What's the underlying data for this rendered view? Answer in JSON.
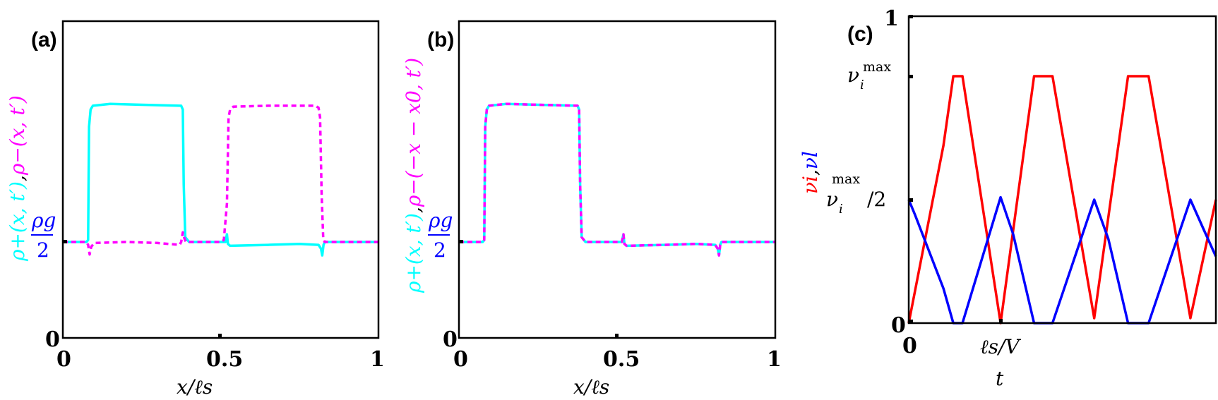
{
  "figure": {
    "panels": [
      {
        "id": "a",
        "label": "(a)"
      },
      {
        "id": "b",
        "label": "(b)"
      },
      {
        "id": "c",
        "label": "(c)"
      }
    ]
  },
  "colors": {
    "rho_plus": "#00ffff",
    "rho_minus": "#ff00ff",
    "nu_i": "#ff0000",
    "nu_l": "#0000ff",
    "rho_g_label": "#0000ff",
    "axes": "#000000"
  },
  "labels": {
    "a": {
      "panel": "(a)",
      "xlabel": "x/ℓs",
      "ylabel_plus": "ρ+(x, t′)",
      "ylabel_sep": ",",
      "ylabel_minus": "ρ−(x, t′)",
      "ytick_rho_num": "ρg",
      "ytick_rho_den": "2",
      "ytick_zero": "0",
      "xticks": [
        "0",
        "0.5",
        "1"
      ]
    },
    "b": {
      "panel": "(b)",
      "xlabel": "x/ℓs",
      "ylabel_plus": "ρ+(x, t′)",
      "ylabel_sep": ",",
      "ylabel_minus": "ρ−(−x − x0, t′)",
      "ytick_rho_num": "ρg",
      "ytick_rho_den": "2",
      "ytick_zero": "0",
      "xticks": [
        "0",
        "0.5",
        "1"
      ]
    },
    "c": {
      "panel": "(c)",
      "xlabel": "t",
      "ylabel_nu_i": "νi",
      "ylabel_sep": ",",
      "ylabel_nu_l": "νl",
      "yticks": [
        "0",
        "νi^max/2",
        "νi^max",
        "1"
      ],
      "ytick_max_base": "ν",
      "ytick_max_sub": "i",
      "ytick_max_sup": "max",
      "ytick_half_suffix": "/2",
      "ytick_top": "1",
      "ytick_zero": "0",
      "xtick_zero": "0",
      "xtick_ls_v": "ℓs/V"
    }
  },
  "chart_data": [
    {
      "panel": "(a)",
      "type": "line",
      "title": "",
      "xlabel": "x/ℓs",
      "ylabel": "ρ+(x,t′), ρ−(x,t′)",
      "xlim": [
        0,
        1
      ],
      "ylim_units_of_rho_g_over_2": [
        0,
        3.3
      ],
      "yticks": [
        {
          "value": 0,
          "label": "0"
        },
        {
          "value": 1,
          "label": "ρg/2"
        }
      ],
      "xticks": [
        0,
        0.5,
        1
      ],
      "grid": false,
      "series": [
        {
          "name": "ρ+(x,t′)",
          "style": "solid",
          "color": "#00ffff",
          "x": [
            0,
            0.075,
            0.08,
            0.083,
            0.088,
            0.095,
            0.15,
            0.25,
            0.375,
            0.38,
            0.383,
            0.388,
            0.4,
            0.5,
            0.515,
            0.52,
            0.523,
            0.53,
            0.65,
            0.75,
            0.81,
            0.818,
            0.822,
            0.826,
            0.83,
            1.0
          ],
          "y": [
            1.0,
            1.0,
            1.02,
            2.2,
            2.38,
            2.42,
            2.44,
            2.43,
            2.42,
            2.38,
            1.6,
            1.05,
            1.0,
            1.0,
            1.0,
            1.08,
            0.98,
            0.96,
            0.97,
            0.98,
            0.97,
            0.93,
            0.86,
            0.97,
            1.0,
            1.0
          ]
        },
        {
          "name": "ρ−(x,t′)",
          "style": "dashed",
          "color": "#ff00ff",
          "x": [
            0,
            0.075,
            0.08,
            0.085,
            0.09,
            0.1,
            0.2,
            0.3,
            0.37,
            0.375,
            0.38,
            0.385,
            0.39,
            0.4,
            0.5,
            0.51,
            0.52,
            0.525,
            0.53,
            0.54,
            0.65,
            0.8,
            0.81,
            0.815,
            0.82,
            0.825,
            0.83,
            1.0
          ],
          "y": [
            1.0,
            1.0,
            0.97,
            0.87,
            0.95,
            0.99,
            1.0,
            0.99,
            0.97,
            1.0,
            1.1,
            1.04,
            1.0,
            1.0,
            1.0,
            1.02,
            1.4,
            2.3,
            2.38,
            2.41,
            2.42,
            2.42,
            2.4,
            2.3,
            1.5,
            1.03,
            1.0,
            1.0
          ]
        }
      ]
    },
    {
      "panel": "(b)",
      "type": "line",
      "title": "",
      "xlabel": "x/ℓs",
      "ylabel": "ρ+(x,t′), ρ−(−x−x0,t′)",
      "xlim": [
        0,
        1
      ],
      "ylim_units_of_rho_g_over_2": [
        0,
        3.3
      ],
      "yticks": [
        {
          "value": 0,
          "label": "0"
        },
        {
          "value": 1,
          "label": "ρg/2"
        }
      ],
      "xticks": [
        0,
        0.5,
        1
      ],
      "grid": false,
      "series": [
        {
          "name": "ρ+(x,t′)",
          "style": "solid",
          "color": "#00ffff",
          "x": [
            0,
            0.075,
            0.08,
            0.083,
            0.088,
            0.095,
            0.15,
            0.25,
            0.375,
            0.38,
            0.383,
            0.388,
            0.4,
            0.5,
            0.515,
            0.52,
            0.523,
            0.53,
            0.65,
            0.75,
            0.81,
            0.818,
            0.822,
            0.826,
            0.83,
            1.0
          ],
          "y": [
            1.0,
            1.0,
            1.02,
            2.2,
            2.38,
            2.42,
            2.44,
            2.43,
            2.42,
            2.38,
            1.6,
            1.05,
            1.0,
            1.0,
            1.0,
            1.08,
            0.98,
            0.96,
            0.97,
            0.98,
            0.97,
            0.93,
            0.86,
            0.97,
            1.0,
            1.0
          ]
        },
        {
          "name": "ρ−(−x−x0,t′)",
          "style": "dashed",
          "color": "#ff00ff",
          "x": [
            0,
            0.075,
            0.08,
            0.083,
            0.088,
            0.095,
            0.15,
            0.25,
            0.375,
            0.38,
            0.383,
            0.388,
            0.4,
            0.5,
            0.515,
            0.52,
            0.523,
            0.53,
            0.65,
            0.75,
            0.81,
            0.818,
            0.822,
            0.826,
            0.83,
            1.0
          ],
          "y": [
            1.0,
            1.0,
            1.02,
            2.2,
            2.38,
            2.42,
            2.44,
            2.43,
            2.42,
            2.38,
            1.6,
            1.05,
            1.0,
            1.0,
            1.0,
            1.08,
            0.98,
            0.96,
            0.97,
            0.98,
            0.97,
            0.93,
            0.86,
            0.97,
            1.0,
            1.0
          ]
        }
      ]
    },
    {
      "panel": "(c)",
      "type": "line",
      "title": "",
      "xlabel": "t",
      "ylabel": "νi, νl",
      "xlim_fraction": [
        0,
        1
      ],
      "ylim_units_of_nu_max": [
        0,
        1.243
      ],
      "yticks": [
        {
          "value": 0,
          "label": "0"
        },
        {
          "value": 0.5,
          "label": "νi^max/2"
        },
        {
          "value": 1,
          "label": "νi^max"
        },
        {
          "value": 1.243,
          "label": "1"
        }
      ],
      "xticks": [
        {
          "value": 0,
          "label": "0"
        },
        {
          "value": 0.299,
          "label": "ℓs/V"
        }
      ],
      "grid": false,
      "series": [
        {
          "name": "νi",
          "color": "#ff0000",
          "x": [
            0.0,
            0.113,
            0.145,
            0.175,
            0.299,
            0.408,
            0.437,
            0.468,
            0.604,
            0.714,
            0.748,
            0.781,
            0.917,
            1.0
          ],
          "y": [
            0.0,
            0.72,
            1.0,
            1.0,
            0.0,
            1.0,
            1.0,
            1.0,
            0.02,
            1.0,
            1.0,
            1.0,
            0.02,
            0.5
          ]
        },
        {
          "name": "νl",
          "color": "#0000ff",
          "x": [
            0.0,
            0.02,
            0.113,
            0.145,
            0.175,
            0.299,
            0.34,
            0.408,
            0.437,
            0.468,
            0.604,
            0.65,
            0.714,
            0.748,
            0.781,
            0.917,
            0.96,
            1.0
          ],
          "y": [
            0.5,
            0.44,
            0.14,
            0.0,
            0.0,
            0.51,
            0.36,
            0.0,
            0.0,
            0.0,
            0.5,
            0.34,
            0.0,
            0.0,
            0.0,
            0.5,
            0.38,
            0.27
          ]
        }
      ]
    }
  ]
}
